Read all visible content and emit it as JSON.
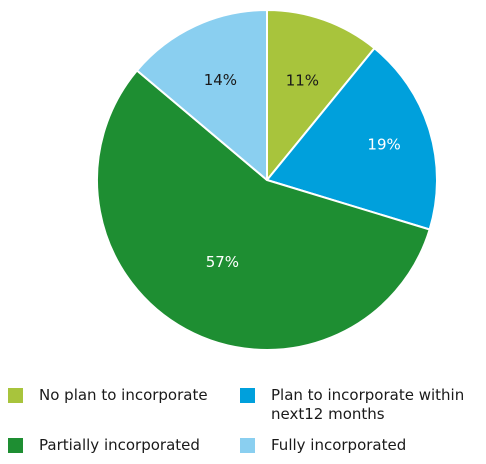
{
  "chart_data": {
    "type": "pie",
    "slices": [
      {
        "label": "No plan to incorporate",
        "value": 11,
        "display": "11%",
        "color": "#a8c43c",
        "label_color": "#1a1a1a"
      },
      {
        "label": "Plan to incorporate within next12 months",
        "value": 19,
        "display": "19%",
        "color": "#00a0dc",
        "label_color": "#ffffff"
      },
      {
        "label": "Partially incorporated",
        "value": 57,
        "display": "57%",
        "color": "#1e8e32",
        "label_color": "#ffffff"
      },
      {
        "label": "Fully incorporated",
        "value": 14,
        "display": "14%",
        "color": "#8acff0",
        "label_color": "#1a1a1a"
      }
    ],
    "start_angle": "12 o'clock",
    "direction": "clockwise",
    "legend_position": "bottom"
  },
  "legend": {
    "items": [
      {
        "line1": "No plan to incorporate",
        "line2": ""
      },
      {
        "line1": "Plan to incorporate within",
        "line2": "next12 months"
      },
      {
        "line1": "Partially incorporated",
        "line2": ""
      },
      {
        "line1": "Fully incorporated",
        "line2": ""
      }
    ]
  }
}
